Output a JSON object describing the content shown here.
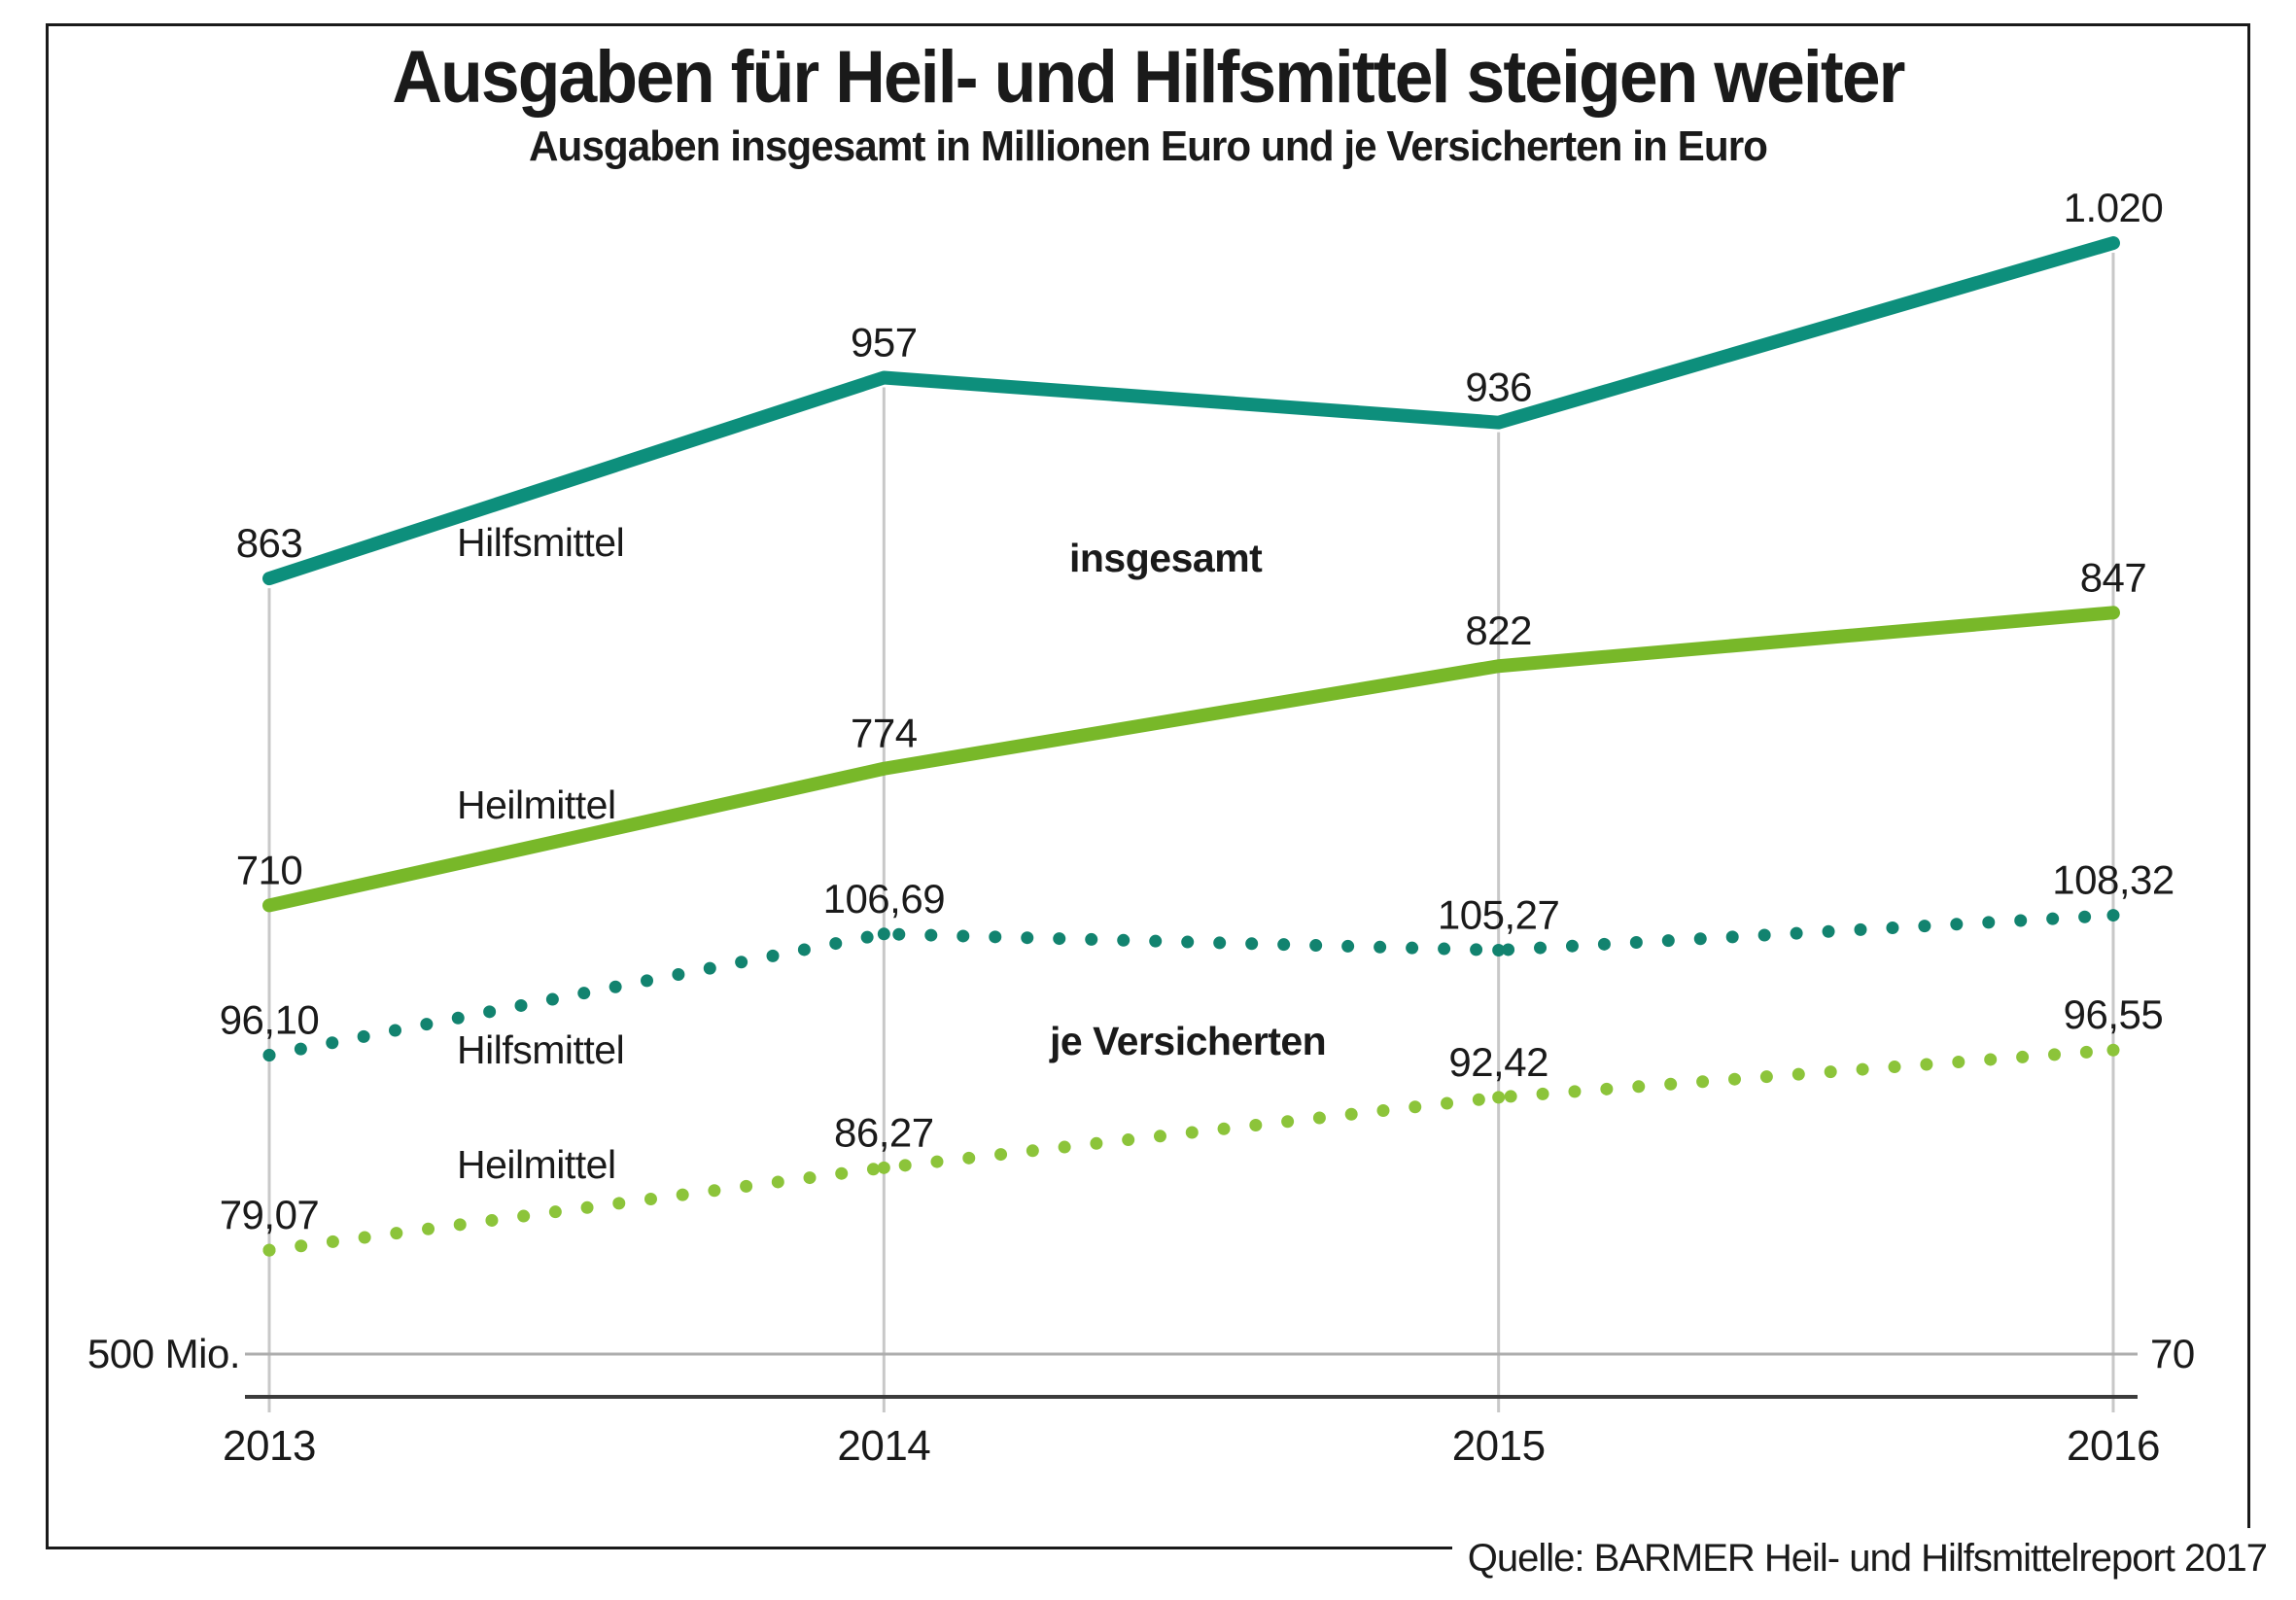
{
  "title": "Ausgaben für Heil- und Hilfsmittel steigen weiter",
  "subtitle": "Ausgaben insgesamt in Millionen Euro und je Versicherten in Euro",
  "source": "Quelle: BARMER Heil- und Hilfsmittelreport 2017",
  "colors": {
    "teal_solid": "#0D8F7C",
    "teal_dotted": "#12836F",
    "green_solid": "#78B829",
    "green_dotted": "#8CC43A",
    "gridline": "#C8C8C8",
    "baseline_line": "#ADADAD",
    "axis_line": "#3C3C3C",
    "text": "#1A1A1A",
    "border": "#1A1A1A",
    "background": "#FFFFFF"
  },
  "chart_data": {
    "type": "line",
    "x": [
      2013,
      2014,
      2015,
      2016
    ],
    "x_labels": [
      "2013",
      "2014",
      "2015",
      "2016"
    ],
    "grid": "vertical-only",
    "left_axis": {
      "label": "500 Mio.",
      "start_value": 500,
      "unit": "Millionen Euro"
    },
    "right_axis": {
      "label": "70",
      "start_value": 70,
      "unit": "Euro je Versicherten"
    },
    "groups": [
      {
        "name": "insgesamt",
        "axis": "left"
      },
      {
        "name": "je Versicherten",
        "axis": "right"
      }
    ],
    "series": [
      {
        "name": "Hilfsmittel",
        "group_index": 0,
        "style": "solid",
        "color_key": "teal_solid",
        "values": [
          863,
          957,
          936,
          1020
        ],
        "value_labels": [
          "863",
          "957",
          "936",
          "1.020"
        ]
      },
      {
        "name": "Heilmittel",
        "group_index": 0,
        "style": "solid",
        "color_key": "green_solid",
        "values": [
          710,
          774,
          822,
          847
        ],
        "value_labels": [
          "710",
          "774",
          "822",
          "847"
        ]
      },
      {
        "name": "Hilfsmittel",
        "group_index": 1,
        "style": "dotted",
        "color_key": "teal_dotted",
        "values": [
          96.1,
          106.69,
          105.27,
          108.32
        ],
        "value_labels": [
          "96,10",
          "106,69",
          "105,27",
          "108,32"
        ]
      },
      {
        "name": "Heilmittel",
        "group_index": 1,
        "style": "dotted",
        "color_key": "green_dotted",
        "values": [
          79.07,
          86.27,
          92.42,
          96.55
        ],
        "value_labels": [
          "79,07",
          "86,27",
          "92,42",
          "96,55"
        ]
      }
    ]
  }
}
